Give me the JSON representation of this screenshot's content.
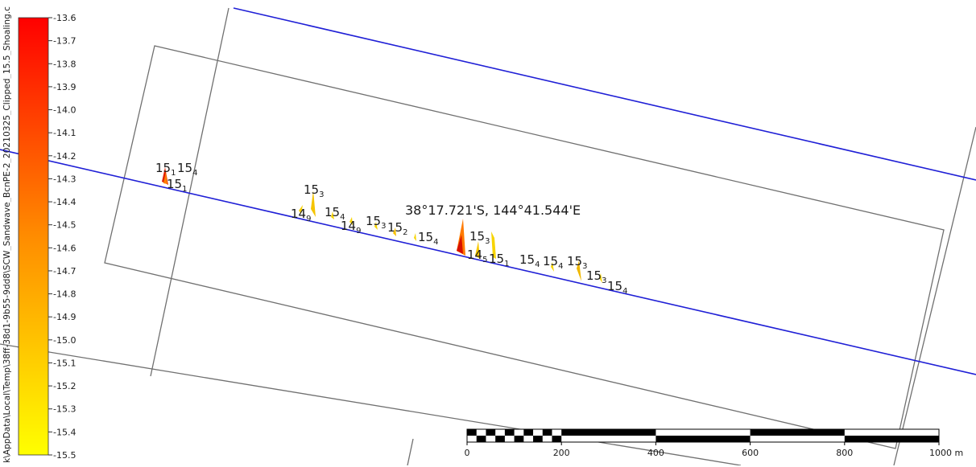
{
  "file_path_text": "k\\AppData\\Local\\Temp\\38ff-38d1-9b55-9dd8\\SCW_Sandwave_BcnPE-2_20210325_Clipped_15.5_Shoaling.c",
  "colorbar": {
    "ticks": [
      "-13.6",
      "-13.7",
      "-13.8",
      "-13.9",
      "-14.0",
      "-14.1",
      "-14.2",
      "-14.3",
      "-14.4",
      "-14.5",
      "-14.6",
      "-14.7",
      "-14.8",
      "-14.9",
      "-15.0",
      "-15.1",
      "-15.2",
      "-15.3",
      "-15.4",
      "-15.5"
    ],
    "range": [
      -13.6,
      -15.5
    ],
    "colors": [
      "#ff0000",
      "#ff8000",
      "#ffff00"
    ]
  },
  "cursor_coordinate": "38°17.721'S, 144°41.544'E",
  "depth_labels": [
    {
      "main": "15",
      "sub": "1"
    },
    {
      "main": "15",
      "sub": "4"
    },
    {
      "main": "15",
      "sub": "1"
    },
    {
      "main": "15",
      "sub": "3"
    },
    {
      "main": "14",
      "sub": "9"
    },
    {
      "main": "15",
      "sub": "4"
    },
    {
      "main": "14",
      "sub": "9"
    },
    {
      "main": "15",
      "sub": "3"
    },
    {
      "main": "15",
      "sub": "2"
    },
    {
      "main": "15",
      "sub": "4"
    },
    {
      "main": "15",
      "sub": "3"
    },
    {
      "main": "14",
      "sub": "5"
    },
    {
      "main": "15",
      "sub": "1"
    },
    {
      "main": "15",
      "sub": "4"
    },
    {
      "main": "15",
      "sub": "4"
    },
    {
      "main": "15",
      "sub": "3"
    },
    {
      "main": "15",
      "sub": "3"
    },
    {
      "main": "15",
      "sub": "4"
    }
  ],
  "scale_bar": {
    "labels": [
      "0",
      "200",
      "400",
      "600",
      "800",
      "1000 m"
    ]
  },
  "line_colors": {
    "channel_line": "#1f1fd6",
    "boundary_line": "#707070"
  }
}
